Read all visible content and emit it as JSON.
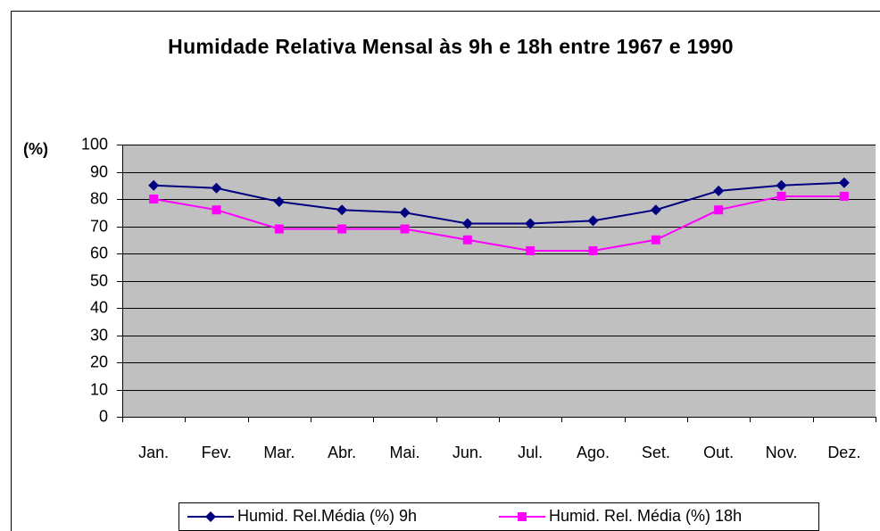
{
  "chart_data": {
    "type": "line",
    "title": "Humidade Relativa Mensal às 9h e 18h entre 1967 e 1990",
    "y_label": "(%)",
    "categories": [
      "Jan.",
      "Fev.",
      "Mar.",
      "Abr.",
      "Mai.",
      "Jun.",
      "Jul.",
      "Ago.",
      "Set.",
      "Out.",
      "Nov.",
      "Dez."
    ],
    "series": [
      {
        "name": "Humid. Rel.Média (%) 9h",
        "color": "#000080",
        "marker": "diamond",
        "values": [
          85,
          84,
          79,
          76,
          75,
          71,
          71,
          72,
          76,
          83,
          85,
          86
        ]
      },
      {
        "name": "Humid. Rel. Média (%) 18h",
        "color": "#ff00ff",
        "marker": "square",
        "values": [
          80,
          76,
          69,
          69,
          69,
          65,
          61,
          61,
          65,
          76,
          81,
          81
        ]
      }
    ],
    "ylim": [
      0,
      100
    ],
    "yticks": [
      0,
      10,
      20,
      30,
      40,
      50,
      60,
      70,
      80,
      90,
      100
    ],
    "grid": true,
    "legend": "bottom",
    "plot_background": "#c0c0c0"
  }
}
